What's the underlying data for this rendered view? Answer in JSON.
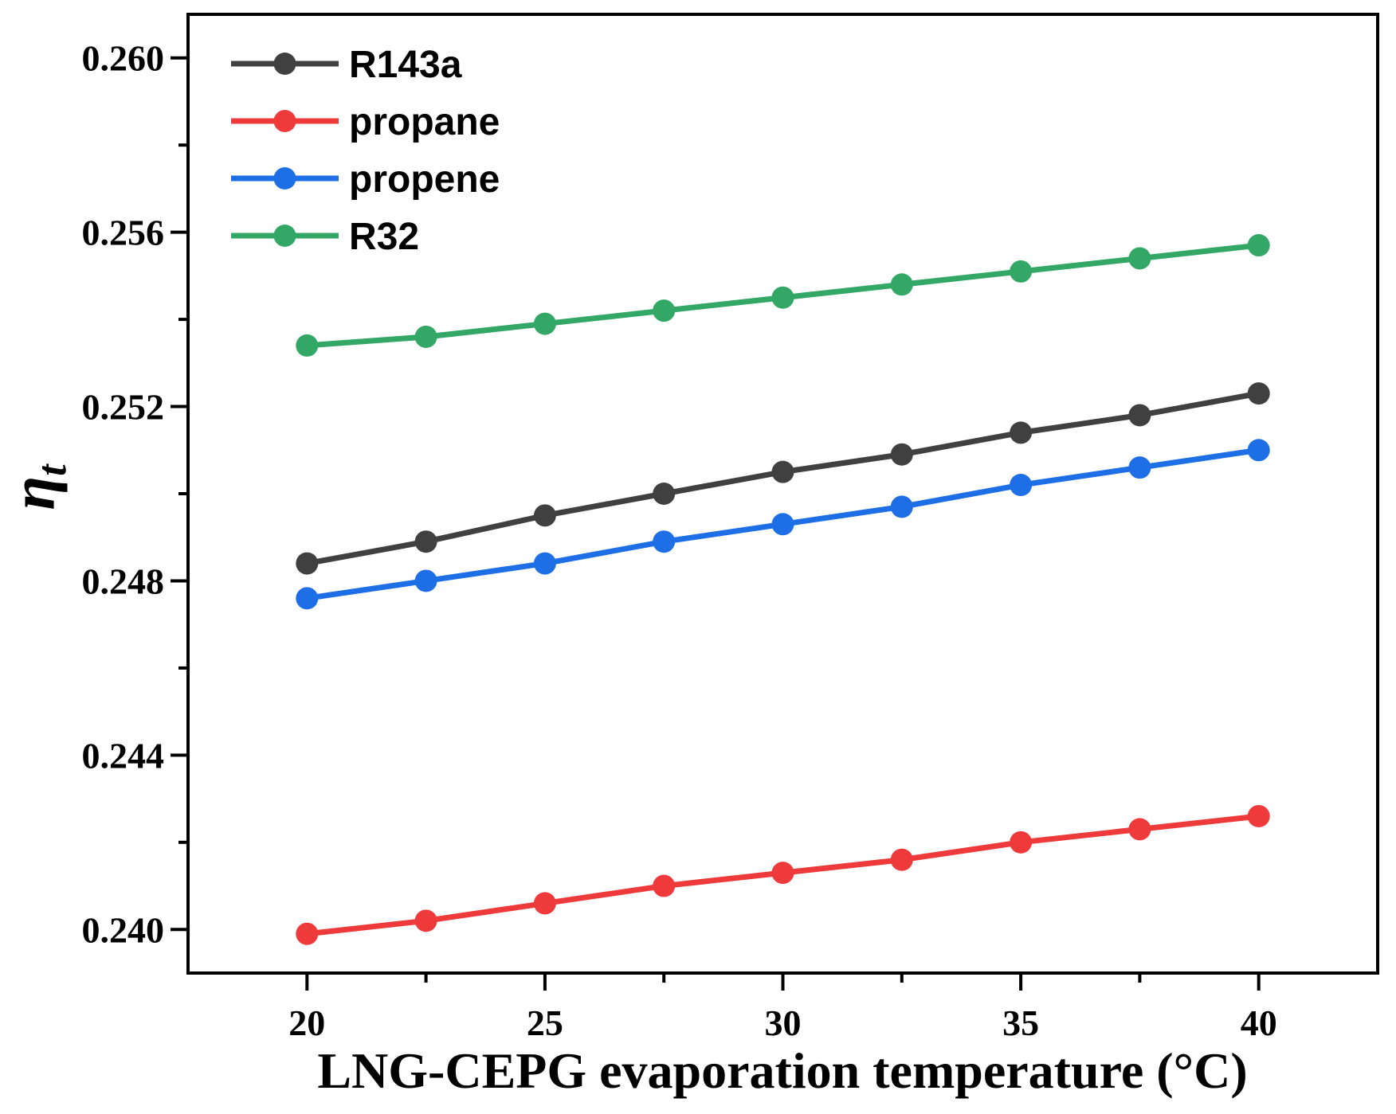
{
  "chart_data": {
    "type": "line",
    "title": "",
    "xlabel": "LNG-CEPG evaporation temperature (°C)",
    "ylabel": {
      "symbol": "η",
      "subscript": "t"
    },
    "xlim": [
      17.5,
      42.5
    ],
    "ylim": [
      0.239,
      0.261
    ],
    "x_ticks": [
      20,
      25,
      30,
      35,
      40
    ],
    "y_ticks": [
      0.24,
      0.244,
      0.248,
      0.252,
      0.256,
      0.26
    ],
    "y_tick_labels": [
      "0.240",
      "0.244",
      "0.248",
      "0.252",
      "0.256",
      "0.260"
    ],
    "x": [
      20,
      22.5,
      25,
      27.5,
      30,
      32.5,
      35,
      37.5,
      40
    ],
    "grid": false,
    "legend_position": "top-left",
    "series": [
      {
        "name": "R143a",
        "color": "#404040",
        "values": [
          0.2484,
          0.2489,
          0.2495,
          0.25,
          0.2505,
          0.2509,
          0.2514,
          0.2518,
          0.2523
        ]
      },
      {
        "name": "propane",
        "color": "#ee3a3a",
        "values": [
          0.2399,
          0.2402,
          0.2406,
          0.241,
          0.2413,
          0.2416,
          0.242,
          0.2423,
          0.2426
        ]
      },
      {
        "name": "propene",
        "color": "#1e6fe6",
        "values": [
          0.2476,
          0.248,
          0.2484,
          0.2489,
          0.2493,
          0.2497,
          0.2502,
          0.2506,
          0.251
        ]
      },
      {
        "name": "R32",
        "color": "#33a866",
        "values": [
          0.2534,
          0.2536,
          0.2539,
          0.2542,
          0.2545,
          0.2548,
          0.2551,
          0.2554,
          0.2557
        ]
      }
    ]
  }
}
